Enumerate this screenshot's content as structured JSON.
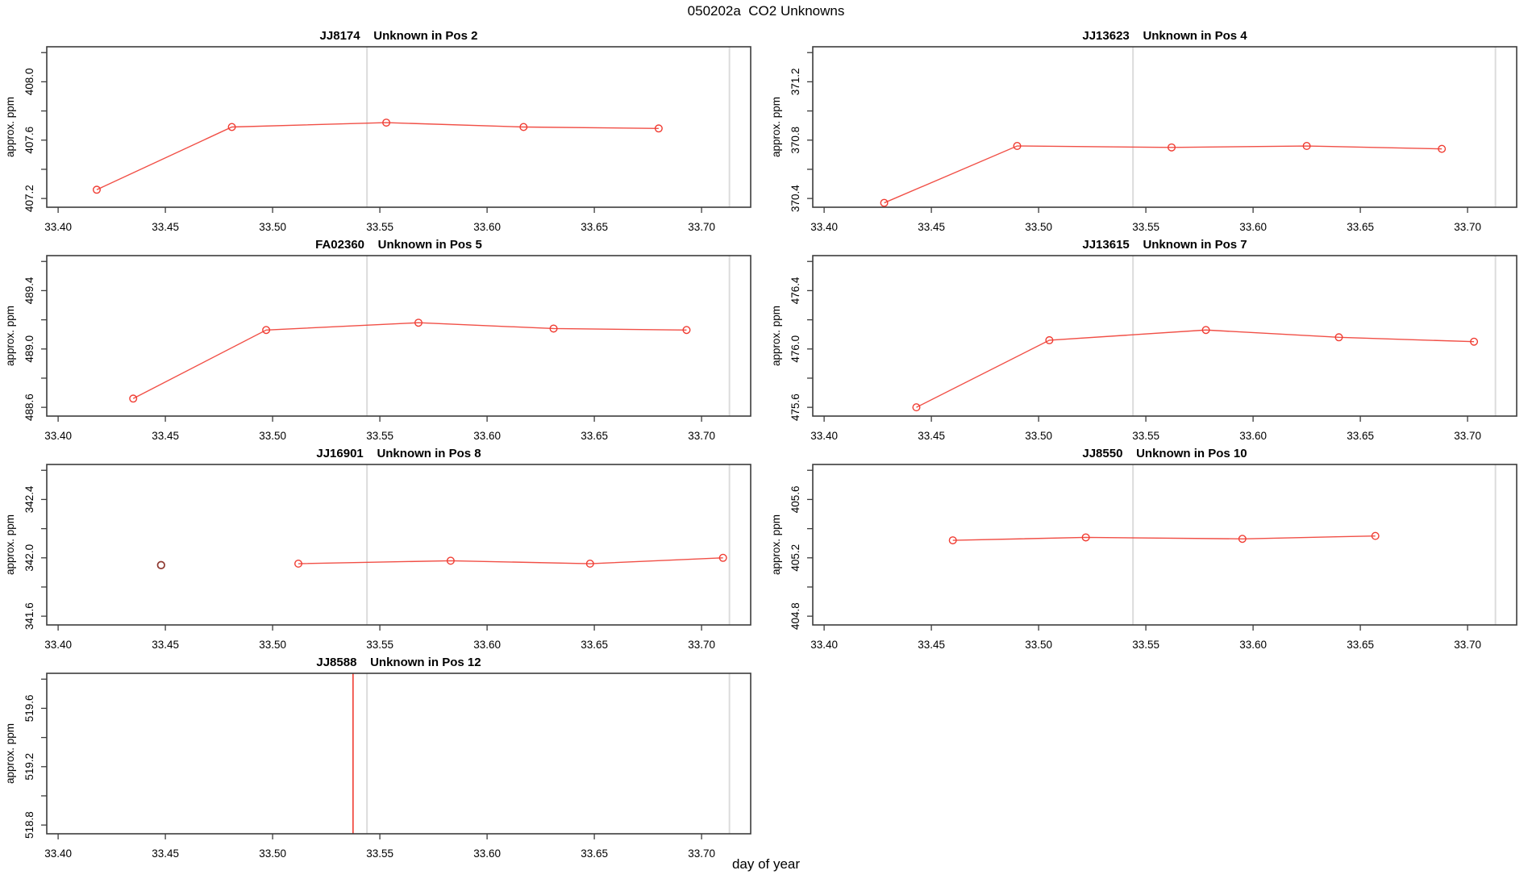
{
  "figure": {
    "title": "050202a  CO2 Unknowns",
    "xlabel": "day of year",
    "ylabel": "approx. ppm",
    "colors": {
      "series": "#f03c32",
      "dark_point": "#8f3a32",
      "grid_line": "#dcdcdc",
      "frame": "#3c3c3c",
      "text": "#000000",
      "background": "#ffffff"
    }
  },
  "chart_data": [
    {
      "type": "line",
      "name": "JJ8174",
      "title": "JJ8174    Unknown in Pos 2",
      "ylabel": "approx. ppm",
      "xlim": [
        33.3947,
        33.7229
      ],
      "xticks": [
        33.4,
        33.45,
        33.5,
        33.55,
        33.6,
        33.65,
        33.7
      ],
      "ylim": [
        407.14,
        408.24
      ],
      "yticks": [
        407.2,
        407.4,
        407.6,
        407.8,
        408.0,
        408.2
      ],
      "ytick_labeled": [
        407.2,
        407.6,
        408.0
      ],
      "x": [
        33.418,
        33.481,
        33.553,
        33.617,
        33.68
      ],
      "y": [
        407.26,
        407.69,
        407.72,
        407.69,
        407.68
      ],
      "gray_vlines": [
        33.544,
        33.713
      ]
    },
    {
      "type": "line",
      "name": "JJ13623",
      "title": "JJ13623    Unknown in Pos 4",
      "ylabel": "approx. ppm",
      "xlim": [
        33.3947,
        33.7229
      ],
      "xticks": [
        33.4,
        33.45,
        33.5,
        33.55,
        33.6,
        33.65,
        33.7
      ],
      "ylim": [
        370.34,
        371.44
      ],
      "yticks": [
        370.4,
        370.6,
        370.8,
        371.0,
        371.2,
        371.4
      ],
      "ytick_labeled": [
        370.4,
        370.8,
        371.2
      ],
      "x": [
        33.428,
        33.49,
        33.562,
        33.625,
        33.688
      ],
      "y": [
        370.37,
        370.76,
        370.75,
        370.76,
        370.74
      ],
      "gray_vlines": [
        33.544,
        33.713
      ]
    },
    {
      "type": "line",
      "name": "FA02360",
      "title": "FA02360    Unknown in Pos 5",
      "ylabel": "approx. ppm",
      "xlim": [
        33.3947,
        33.7229
      ],
      "xticks": [
        33.4,
        33.45,
        33.5,
        33.55,
        33.6,
        33.65,
        33.7
      ],
      "ylim": [
        488.54,
        489.64
      ],
      "yticks": [
        488.6,
        488.8,
        489.0,
        489.2,
        489.4,
        489.6
      ],
      "ytick_labeled": [
        488.6,
        489.0,
        489.4
      ],
      "x": [
        33.435,
        33.497,
        33.568,
        33.631,
        33.693
      ],
      "y": [
        488.66,
        489.13,
        489.18,
        489.14,
        489.13
      ],
      "gray_vlines": [
        33.544,
        33.713
      ]
    },
    {
      "type": "line",
      "name": "JJ13615",
      "title": "JJ13615    Unknown in Pos 7",
      "ylabel": "approx. ppm",
      "xlim": [
        33.3947,
        33.7229
      ],
      "xticks": [
        33.4,
        33.45,
        33.5,
        33.55,
        33.6,
        33.65,
        33.7
      ],
      "ylim": [
        475.54,
        476.64
      ],
      "yticks": [
        475.6,
        475.8,
        476.0,
        476.2,
        476.4,
        476.6
      ],
      "ytick_labeled": [
        475.6,
        476.0,
        476.4
      ],
      "x": [
        33.443,
        33.505,
        33.578,
        33.64,
        33.703
      ],
      "y": [
        475.6,
        476.06,
        476.13,
        476.08,
        476.05
      ],
      "gray_vlines": [
        33.544,
        33.713
      ]
    },
    {
      "type": "line",
      "name": "JJ16901",
      "title": "JJ16901    Unknown in Pos 8",
      "ylabel": "approx. ppm",
      "xlim": [
        33.3947,
        33.7229
      ],
      "xticks": [
        33.4,
        33.45,
        33.5,
        33.55,
        33.6,
        33.65,
        33.7
      ],
      "ylim": [
        341.54,
        342.64
      ],
      "yticks": [
        341.6,
        341.8,
        342.0,
        342.2,
        342.4,
        342.6
      ],
      "ytick_labeled": [
        341.6,
        342.0,
        342.4
      ],
      "x": [
        33.512,
        33.583,
        33.648,
        33.71
      ],
      "y": [
        341.96,
        341.98,
        341.96,
        342.0
      ],
      "extra_points": [
        {
          "x": 33.448,
          "y": 341.95,
          "color": "#8f3a32"
        }
      ],
      "gray_vlines": [
        33.544,
        33.713
      ]
    },
    {
      "type": "line",
      "name": "JJ8550",
      "title": "JJ8550    Unknown in Pos 10",
      "ylabel": "approx. ppm",
      "xlim": [
        33.3947,
        33.7229
      ],
      "xticks": [
        33.4,
        33.45,
        33.5,
        33.55,
        33.6,
        33.65,
        33.7
      ],
      "ylim": [
        404.74,
        405.84
      ],
      "yticks": [
        404.8,
        405.0,
        405.2,
        405.4,
        405.6,
        405.8
      ],
      "ytick_labeled": [
        404.8,
        405.2,
        405.6
      ],
      "x": [
        33.46,
        33.522,
        33.595,
        33.657
      ],
      "y": [
        405.32,
        405.34,
        405.33,
        405.35
      ],
      "gray_vlines": [
        33.544,
        33.713
      ]
    },
    {
      "type": "line",
      "name": "JJ8588",
      "title": "JJ8588    Unknown in Pos 12",
      "ylabel": "approx. ppm",
      "xlim": [
        33.3947,
        33.7229
      ],
      "xticks": [
        33.4,
        33.45,
        33.5,
        33.55,
        33.6,
        33.65,
        33.7
      ],
      "ylim": [
        518.74,
        519.84
      ],
      "yticks": [
        518.8,
        519.0,
        519.2,
        519.4,
        519.6,
        519.8
      ],
      "ytick_labeled": [
        518.8,
        519.2,
        519.6
      ],
      "x": [],
      "y": [],
      "red_vline": 33.5375,
      "gray_vlines": [
        33.544,
        33.713
      ]
    }
  ]
}
